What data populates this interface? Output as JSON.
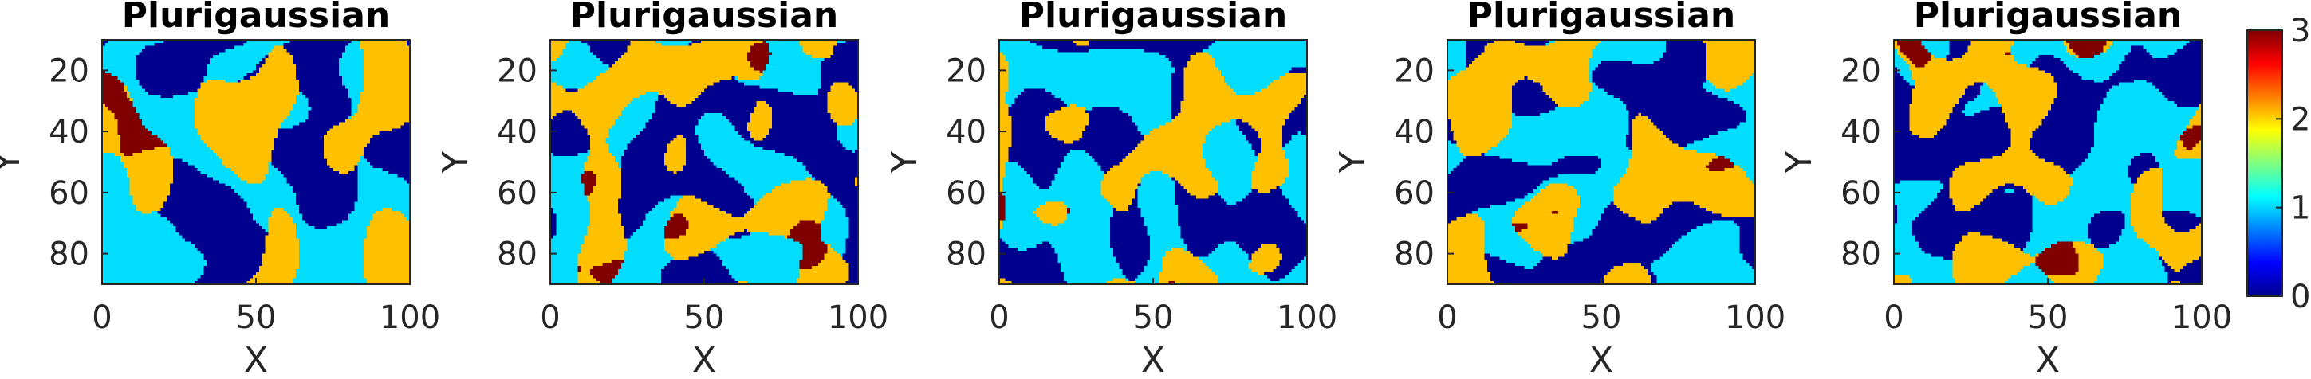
{
  "chart_data": {
    "type": "heatmap",
    "grid": {
      "cols": 100,
      "rows": 80,
      "y_start": 10,
      "y_end": 90
    },
    "colormap": "jet",
    "category_colors": [
      "#00008F",
      "#00DDFF",
      "#FFC000",
      "#800000"
    ],
    "colorbar": {
      "range": [
        0,
        3
      ],
      "ticks": [
        "0",
        "1",
        "2",
        "3"
      ]
    },
    "panels": [
      {
        "title": "Plurigaussian",
        "xlabel": "X",
        "ylabel": "Y",
        "xticks": [
          "0",
          "50",
          "100"
        ],
        "yticks": [
          "20",
          "40",
          "60",
          "80"
        ],
        "xlim": [
          0,
          100
        ],
        "ylim": [
          10,
          90
        ],
        "seed": 11
      },
      {
        "title": "Plurigaussian",
        "xlabel": "X",
        "ylabel": "Y",
        "xticks": [
          "0",
          "50",
          "100"
        ],
        "yticks": [
          "20",
          "40",
          "60",
          "80"
        ],
        "xlim": [
          0,
          100
        ],
        "ylim": [
          10,
          90
        ],
        "seed": 23
      },
      {
        "title": "Plurigaussian",
        "xlabel": "X",
        "ylabel": "Y",
        "xticks": [
          "0",
          "50",
          "100"
        ],
        "yticks": [
          "20",
          "40",
          "60",
          "80"
        ],
        "xlim": [
          0,
          100
        ],
        "ylim": [
          10,
          90
        ],
        "seed": 37
      },
      {
        "title": "Plurigaussian",
        "xlabel": "X",
        "ylabel": "Y",
        "xticks": [
          "0",
          "50",
          "100"
        ],
        "yticks": [
          "20",
          "40",
          "60",
          "80"
        ],
        "xlim": [
          0,
          100
        ],
        "ylim": [
          10,
          90
        ],
        "seed": 41
      },
      {
        "title": "Plurigaussian",
        "xlabel": "X",
        "ylabel": "Y",
        "xticks": [
          "0",
          "50",
          "100"
        ],
        "yticks": [
          "20",
          "40",
          "60",
          "80"
        ],
        "xlim": [
          0,
          100
        ],
        "ylim": [
          10,
          90
        ],
        "seed": 53
      }
    ]
  }
}
